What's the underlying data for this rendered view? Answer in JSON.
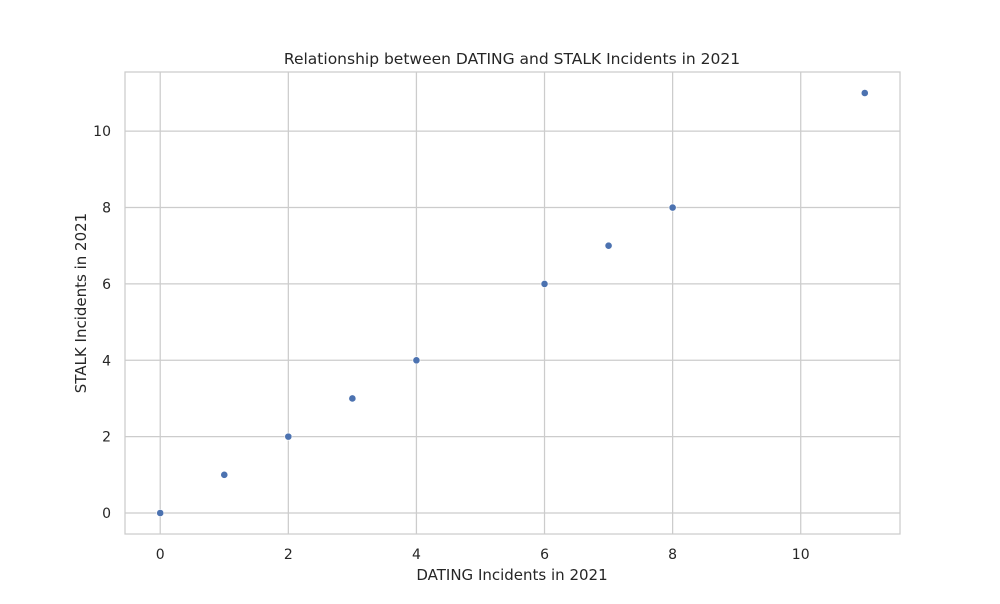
{
  "chart_data": {
    "type": "scatter",
    "title": "Relationship between DATING and STALK Incidents in 2021",
    "xlabel": "DATING Incidents in 2021",
    "ylabel": "STALK Incidents in 2021",
    "xlim": [
      -0.55,
      11.55
    ],
    "ylim": [
      -0.55,
      11.55
    ],
    "xticks": [
      0,
      2,
      4,
      6,
      8,
      10
    ],
    "yticks": [
      0,
      2,
      4,
      6,
      8,
      10
    ],
    "grid": true,
    "legend": "none",
    "colors": {
      "point": "#4c72b0",
      "grid": "#cccccc",
      "frame": "#cccccc",
      "background": "#ffffff"
    },
    "points": [
      {
        "x": 0,
        "y": 0
      },
      {
        "x": 1,
        "y": 1
      },
      {
        "x": 2,
        "y": 2
      },
      {
        "x": 3,
        "y": 3
      },
      {
        "x": 4,
        "y": 4
      },
      {
        "x": 6,
        "y": 6
      },
      {
        "x": 7,
        "y": 7
      },
      {
        "x": 8,
        "y": 8
      },
      {
        "x": 11,
        "y": 11
      }
    ]
  }
}
